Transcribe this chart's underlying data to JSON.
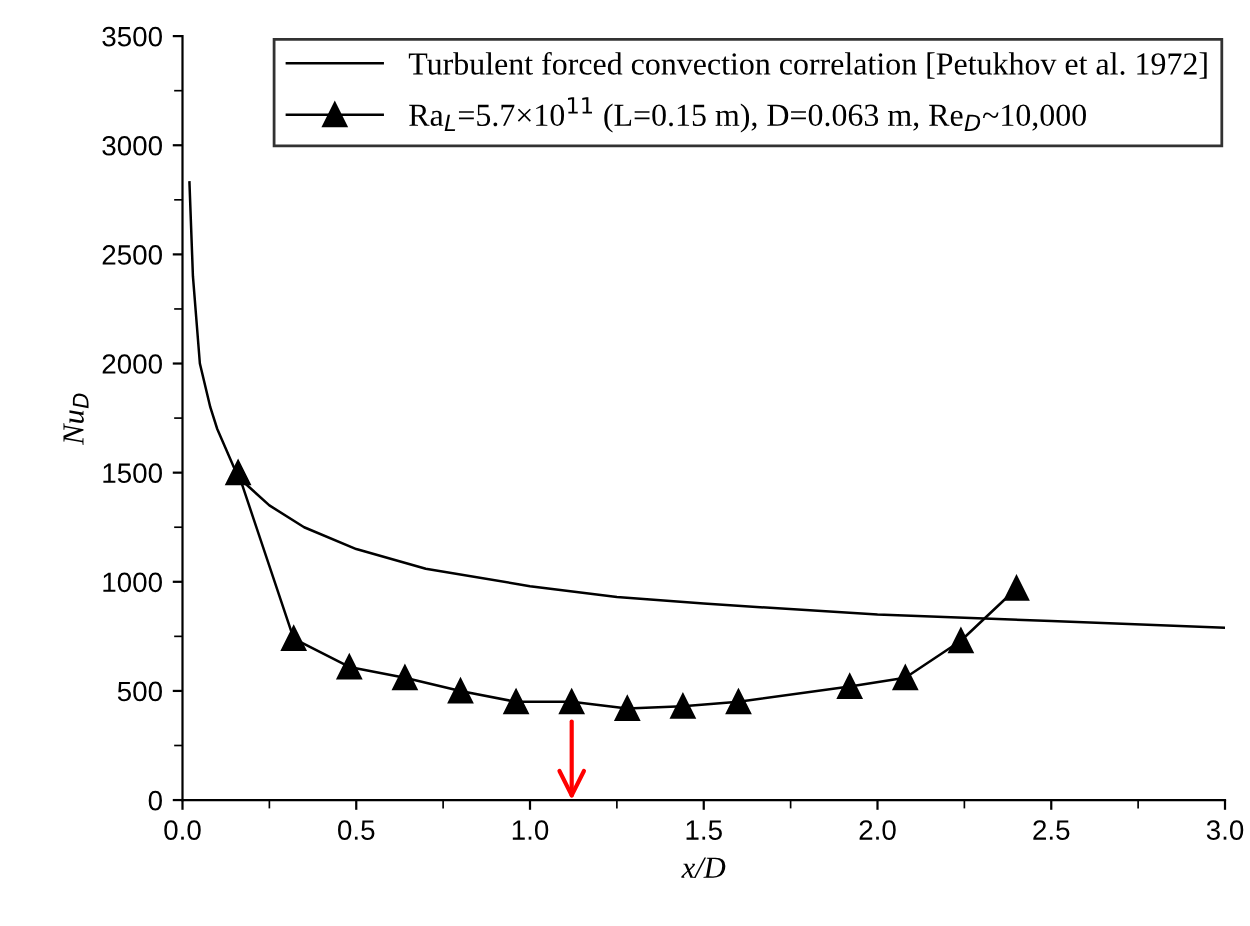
{
  "chart_data": {
    "type": "line",
    "xlabel": "x/D",
    "ylabel": "Nu$_{D}$",
    "xlim": [
      0,
      3
    ],
    "ylim": [
      0,
      3500
    ],
    "xticks": [
      {
        "value": 0,
        "label": "0.0"
      },
      0.5,
      {
        "value": 1,
        "label": "1.0"
      },
      1.5,
      {
        "value": 2,
        "label": "2.0"
      },
      2.5,
      {
        "value": 3,
        "label": "3.0"
      }
    ],
    "yticks": [
      0,
      500,
      1000,
      1500,
      2000,
      2500,
      3000,
      3500
    ],
    "grid": false,
    "legend": "top right",
    "line_style": "solid",
    "series": [
      {
        "name": "Turbulent forced convection correlation [Petukhov et al. 1972]",
        "color": "#000000",
        "marker": "none",
        "x": [
          0.02,
          0.03,
          0.05,
          0.08,
          0.1,
          0.16,
          0.25,
          0.35,
          0.5,
          0.7,
          1.0,
          1.25,
          1.5,
          2.0,
          2.5,
          3.0
        ],
        "values": [
          2830,
          2400,
          2000,
          1800,
          1700,
          1480,
          1350,
          1250,
          1150,
          1060,
          980,
          930,
          900,
          850,
          820,
          790
        ]
      },
      {
        "name": "Ra$_{L}$=5.7×10$^{11}$ (L=0.15 m), D=0.063 m, Re$_{D}$~10,000",
        "color": "#000000",
        "marker": "triangle",
        "x": [
          0.16,
          0.32,
          0.48,
          0.64,
          0.8,
          0.96,
          1.12,
          1.28,
          1.44,
          1.6,
          1.92,
          2.08,
          2.24,
          2.4
        ],
        "values": [
          1500,
          740,
          610,
          560,
          500,
          450,
          450,
          420,
          430,
          450,
          520,
          560,
          730,
          970
        ]
      }
    ]
  }
}
